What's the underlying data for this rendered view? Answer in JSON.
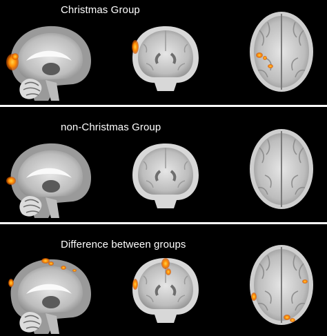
{
  "panels": [
    {
      "title": "Christmas Group"
    },
    {
      "title": "non-Christmas Group"
    },
    {
      "title": "Difference between groups"
    }
  ],
  "colors": {
    "background": "#000000",
    "divider": "#ffffff",
    "activation_hot": "#ffb000",
    "activation_core": "#ff6a00"
  },
  "views": [
    "sagittal",
    "coronal",
    "axial"
  ]
}
